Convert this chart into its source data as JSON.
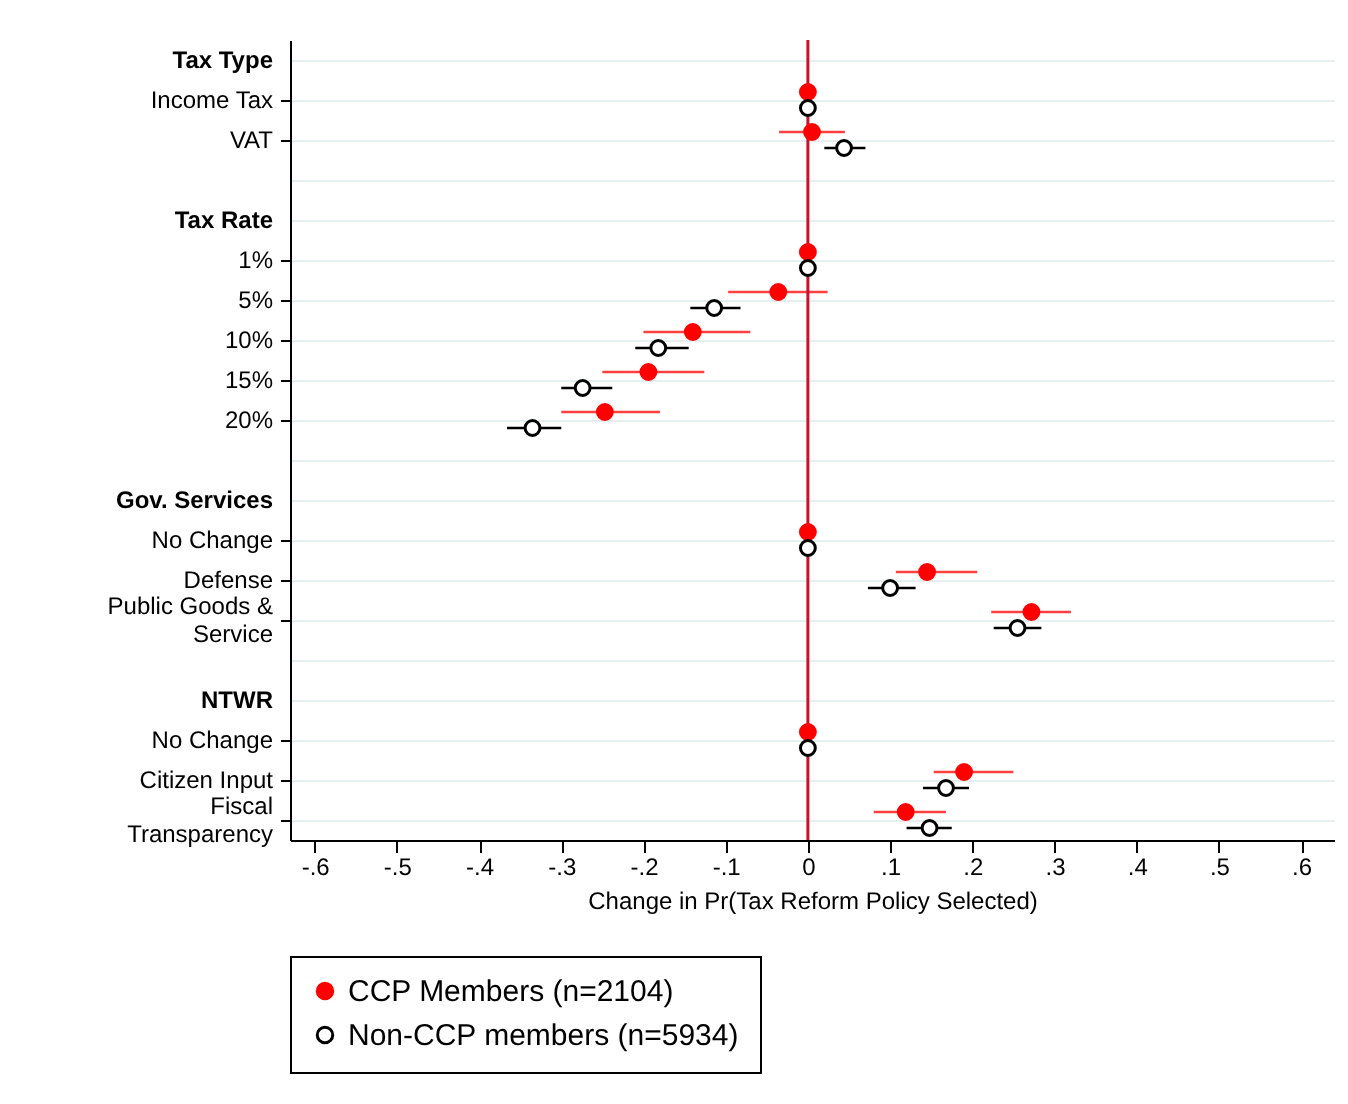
{
  "chart_data": {
    "type": "scatter",
    "orientation": "horizontal",
    "xlabel": "Change in Pr(Tax Reform Policy Selected)",
    "categories": [
      "Tax Type",
      "Income Tax",
      "VAT",
      null,
      "Tax Rate",
      "1%",
      "5%",
      "10%",
      "15%",
      "20%",
      null,
      "Gov. Services",
      "No Change",
      "Defense",
      "Public Goods &\nService",
      null,
      "NTWR",
      "No Change",
      "Citizen Input",
      "Fiscal\nTransparency"
    ],
    "series": [
      {
        "name": "CCP Members (n=2104)",
        "color": "#ff0000",
        "values": [
          null,
          0,
          0.005,
          null,
          null,
          0,
          -0.036,
          -0.14,
          -0.194,
          -0.247,
          null,
          null,
          0,
          0.145,
          0.272,
          null,
          null,
          0,
          0.19,
          0.119
        ],
        "errors": [
          null,
          null,
          [
            -0.035,
            0.045
          ],
          null,
          null,
          null,
          [
            -0.097,
            0.024
          ],
          [
            -0.2,
            -0.07
          ],
          [
            -0.25,
            -0.126
          ],
          [
            -0.3,
            -0.18
          ],
          null,
          null,
          null,
          [
            0.107,
            0.206
          ],
          [
            0.223,
            0.32
          ],
          null,
          null,
          null,
          [
            0.153,
            0.25
          ],
          [
            0.08,
            0.168
          ]
        ]
      },
      {
        "name": "Non-CCP members (n=5934)",
        "color": "#000000",
        "values": [
          null,
          0,
          0.044,
          null,
          null,
          0,
          -0.114,
          -0.182,
          -0.274,
          -0.335,
          null,
          null,
          0,
          0.1,
          0.255,
          null,
          null,
          0,
          0.168,
          0.148
        ],
        "errors": [
          null,
          null,
          [
            0.02,
            0.07
          ],
          null,
          null,
          null,
          [
            -0.143,
            -0.082
          ],
          [
            -0.21,
            -0.145
          ],
          [
            -0.3,
            -0.238
          ],
          [
            -0.366,
            -0.3
          ],
          null,
          null,
          null,
          [
            0.073,
            0.131
          ],
          [
            0.226,
            0.284
          ],
          null,
          null,
          null,
          [
            0.14,
            0.196
          ],
          [
            0.12,
            0.175
          ]
        ]
      }
    ],
    "xlim": [
      -0.63,
      0.64
    ],
    "xticks": [
      {
        "value": -0.6,
        "label": "-.6"
      },
      {
        "value": -0.5,
        "label": "-.5"
      },
      {
        "value": -0.4,
        "label": "-.4"
      },
      {
        "value": -0.3,
        "label": "-.3"
      },
      {
        "value": -0.2,
        "label": "-.2"
      },
      {
        "value": -0.1,
        "label": "-.1"
      },
      0,
      {
        "value": 0.1,
        "label": ".1"
      },
      {
        "value": 0.2,
        "label": ".2"
      },
      {
        "value": 0.3,
        "label": ".3"
      },
      {
        "value": 0.4,
        "label": ".4"
      },
      {
        "value": 0.5,
        "label": ".5"
      },
      {
        "value": 0.6,
        "label": ".6"
      }
    ],
    "ref_lines": [
      {
        "axis": "x",
        "value": 0,
        "color": "#c8102e"
      }
    ],
    "grid": "y",
    "legend": "bottom",
    "marker": "circle"
  }
}
